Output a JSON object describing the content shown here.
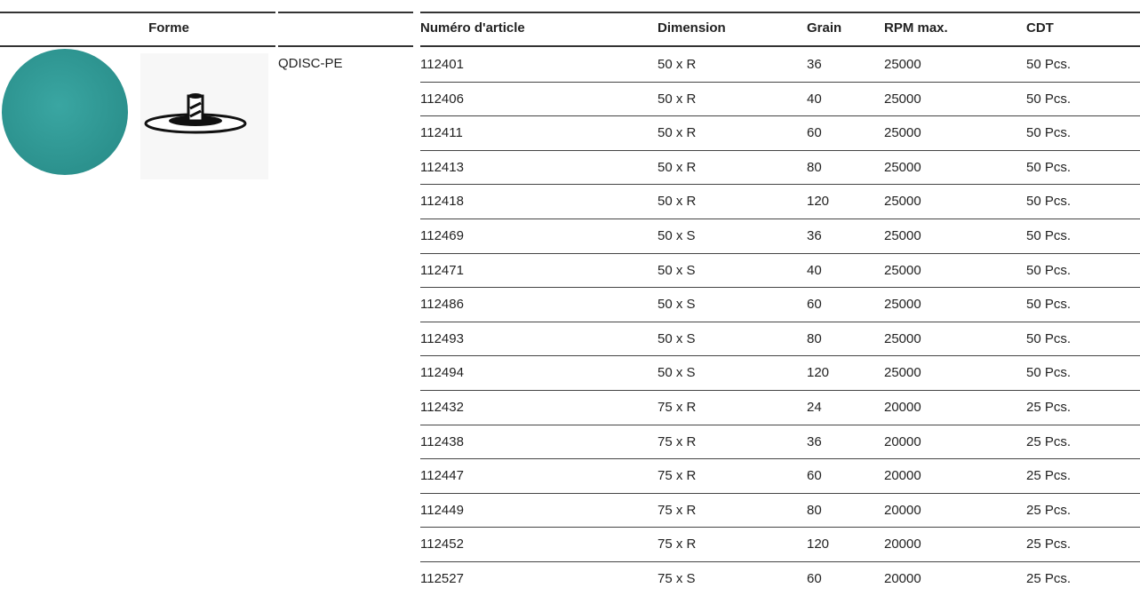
{
  "header": {
    "columns": [
      "Forme",
      "Numéro d'article",
      "Dimension",
      "Grain",
      "RPM max.",
      "CDT"
    ]
  },
  "product": "QDISC-PE",
  "table": {
    "rows": [
      [
        "112401",
        "50 x R",
        "36",
        "25000",
        "50 Pcs."
      ],
      [
        "112406",
        "50 x R",
        "40",
        "25000",
        "50 Pcs."
      ],
      [
        "112411",
        "50 x R",
        "60",
        "25000",
        "50 Pcs."
      ],
      [
        "112413",
        "50 x R",
        "80",
        "25000",
        "50 Pcs."
      ],
      [
        "112418",
        "50 x R",
        "120",
        "25000",
        "50 Pcs."
      ],
      [
        "112469",
        "50 x S",
        "36",
        "25000",
        "50 Pcs."
      ],
      [
        "112471",
        "50 x S",
        "40",
        "25000",
        "50 Pcs."
      ],
      [
        "112486",
        "50 x S",
        "60",
        "25000",
        "50 Pcs."
      ],
      [
        "112493",
        "50 x S",
        "80",
        "25000",
        "50 Pcs."
      ],
      [
        "112494",
        "50 x S",
        "120",
        "25000",
        "50 Pcs."
      ],
      [
        "112432",
        "75 x R",
        "24",
        "20000",
        "25 Pcs."
      ],
      [
        "112438",
        "75 x R",
        "36",
        "20000",
        "25 Pcs."
      ],
      [
        "112447",
        "75 x R",
        "60",
        "20000",
        "25 Pcs."
      ],
      [
        "112449",
        "75 x R",
        "80",
        "20000",
        "25 Pcs."
      ],
      [
        "112452",
        "75 x R",
        "120",
        "20000",
        "25 Pcs."
      ],
      [
        "112527",
        "75 x S",
        "60",
        "20000",
        "25 Pcs."
      ]
    ]
  }
}
